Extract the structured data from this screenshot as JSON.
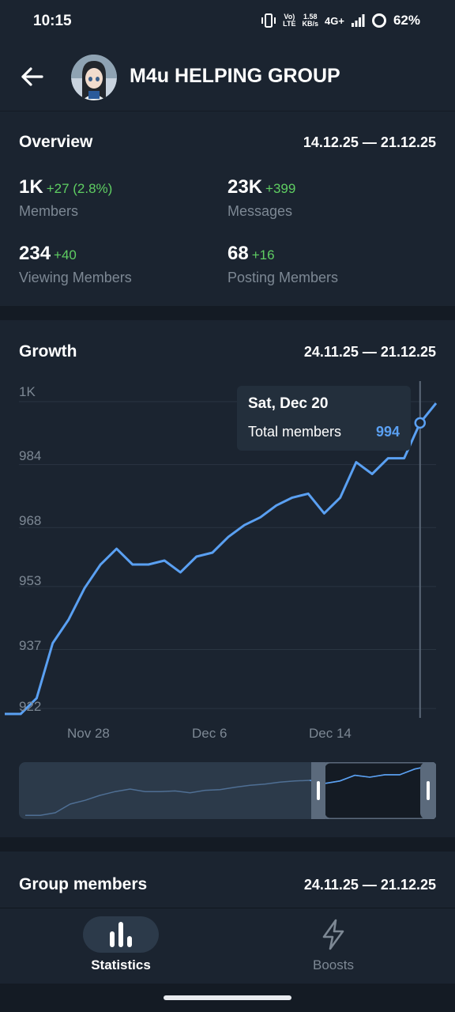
{
  "status_bar": {
    "time": "10:15",
    "volte": "Vo)\nLTE",
    "speed": "1.58\nKB/s",
    "network": "4G+",
    "battery": "62%"
  },
  "header": {
    "title": "M4u HELPING GROUP"
  },
  "overview": {
    "title": "Overview",
    "range": "14.12.25 — 21.12.25",
    "stats": [
      {
        "value": "1K",
        "delta": "+27 (2.8%)",
        "label": "Members"
      },
      {
        "value": "23K",
        "delta": "+399",
        "label": "Messages"
      },
      {
        "value": "234",
        "delta": "+40",
        "label": "Viewing Members"
      },
      {
        "value": "68",
        "delta": "+16",
        "label": "Posting Members"
      }
    ]
  },
  "growth": {
    "title": "Growth",
    "range": "24.11.25 — 21.12.25",
    "tooltip": {
      "date": "Sat, Dec 20",
      "label": "Total members",
      "value": "994"
    }
  },
  "group_members": {
    "title": "Group members",
    "range": "24.11.25 — 21.12.25"
  },
  "nav": {
    "statistics": "Statistics",
    "boosts": "Boosts"
  },
  "colors": {
    "line": "#5aa0f2",
    "positive": "#5fce62",
    "background": "#141b24",
    "card": "#1b2430"
  },
  "chart_data": {
    "type": "line",
    "title": "Growth",
    "series": [
      {
        "values": [
          920,
          920,
          924,
          938,
          944,
          952,
          958,
          962,
          958,
          958,
          959,
          956,
          960,
          961,
          965,
          968,
          970,
          973,
          975,
          976,
          971,
          975,
          984,
          981,
          985,
          985,
          994,
          999
        ]
      }
    ],
    "x": [
      "Nov 24",
      "Nov 25",
      "Nov 26",
      "Nov 27",
      "Nov 28",
      "Nov 29",
      "Nov 30",
      "Dec 1",
      "Dec 2",
      "Dec 3",
      "Dec 4",
      "Dec 5",
      "Dec 6",
      "Dec 7",
      "Dec 8",
      "Dec 9",
      "Dec 10",
      "Dec 11",
      "Dec 12",
      "Dec 13",
      "Dec 14",
      "Dec 15",
      "Dec 16",
      "Dec 17",
      "Dec 18",
      "Dec 19",
      "Dec 20",
      "Dec 21"
    ],
    "x_tick_labels": [
      "Nov 28",
      "Dec 6",
      "Dec 14"
    ],
    "y_tick_labels": [
      "922",
      "937",
      "953",
      "968",
      "984",
      "1K"
    ],
    "ylim": [
      919,
      1000
    ],
    "grid": true,
    "highlight": {
      "x": "Dec 20",
      "value": 994
    }
  }
}
